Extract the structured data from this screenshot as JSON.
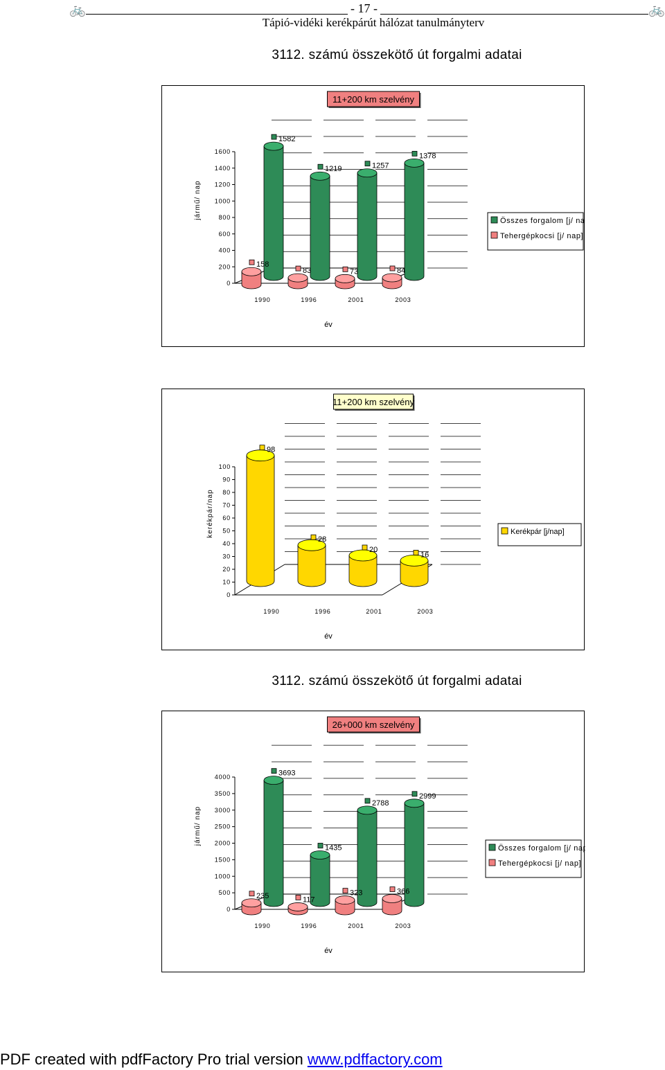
{
  "header": {
    "page_number": "- 17 -",
    "subtitle": "Tápió-vidéki kerékpárút hálózat tanulmányterv",
    "icon_left": "bicycle-icon",
    "icon_right": "bicycle-icon",
    "icon_glyph": "🚲"
  },
  "section_titles": [
    "3112. számú összekötő út forgalmi adatai",
    "3112. számú összekötő út forgalmi adatai"
  ],
  "footer": {
    "text": "PDF created with pdfFactory Pro trial version ",
    "link": "www.pdffactory.com"
  },
  "chart_data": [
    {
      "type": "bar",
      "title": "11+200 km szelvény",
      "title_bg": "#f08080",
      "xlabel": "év",
      "ylabel": "jármű/ nap",
      "categories": [
        "1990",
        "1996",
        "2001",
        "2003"
      ],
      "ylim": [
        0,
        1600
      ],
      "yticks": [
        "0",
        "200",
        "400",
        "600",
        "800",
        "1000",
        "1200",
        "1400",
        "1600"
      ],
      "grid": true,
      "legend_position": "right",
      "series": [
        {
          "name": "Összes forgalom [j/ nap]",
          "values": [
            1582,
            1219,
            1257,
            1378
          ],
          "color": "#2e8b57",
          "labels": [
            "1582",
            "1219",
            "1257",
            "1378"
          ]
        },
        {
          "name": "Tehergépkocsi [j/ nap]",
          "values": [
            158,
            83,
            73,
            84
          ],
          "color": "#f08080",
          "labels": [
            "158",
            "83",
            "73",
            "84"
          ]
        }
      ]
    },
    {
      "type": "bar",
      "title": "11+200 km szelvény",
      "title_bg": "#ffffcc",
      "xlabel": "év",
      "ylabel": "kerékpár/nap",
      "categories": [
        "1990",
        "1996",
        "2001",
        "2003"
      ],
      "ylim": [
        0,
        100
      ],
      "yticks": [
        "0",
        "10",
        "20",
        "30",
        "40",
        "50",
        "60",
        "70",
        "80",
        "90",
        "100"
      ],
      "grid": true,
      "legend_position": "right",
      "series": [
        {
          "name": "Kerékpár [j/nap]",
          "values": [
            98,
            28,
            20,
            16
          ],
          "color": "#ffd700",
          "labels": [
            "98",
            "28",
            "20",
            "16"
          ]
        }
      ]
    },
    {
      "type": "bar",
      "title": "26+000 km szelvény",
      "title_bg": "#f08080",
      "xlabel": "év",
      "ylabel": "jármű/ nap",
      "categories": [
        "1990",
        "1996",
        "2001",
        "2003"
      ],
      "ylim": [
        0,
        4000
      ],
      "yticks": [
        "0",
        "500",
        "1000",
        "1500",
        "2000",
        "2500",
        "3000",
        "3500",
        "4000"
      ],
      "grid": true,
      "legend_position": "right",
      "series": [
        {
          "name": "Összes forgalom [j/ nap]",
          "values": [
            3693,
            1435,
            2788,
            2999
          ],
          "color": "#2e8b57",
          "labels": [
            "3693",
            "1435",
            "2788",
            "2999"
          ]
        },
        {
          "name": "Tehergépkocsi [j/ nap]",
          "values": [
            235,
            117,
            323,
            366
          ],
          "color": "#f08080",
          "labels": [
            "235",
            "117",
            "323",
            "366"
          ]
        }
      ]
    }
  ]
}
